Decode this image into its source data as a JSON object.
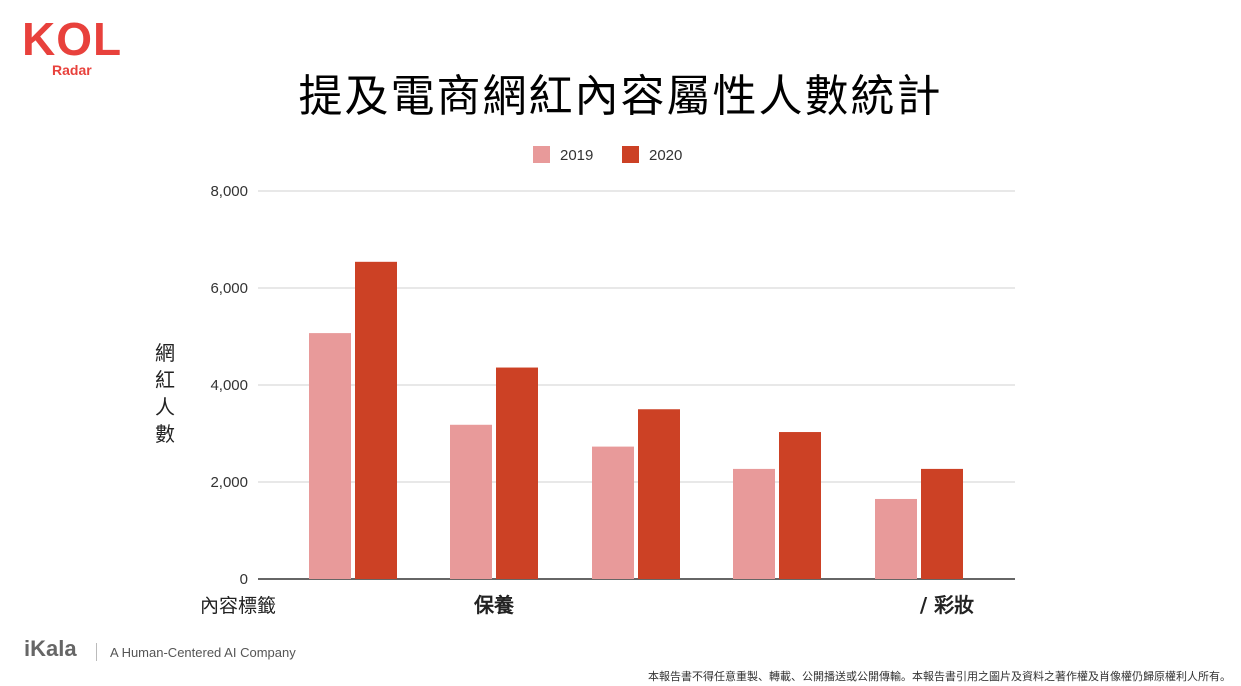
{
  "logo": {
    "text": "KOL",
    "subtext": "Radar",
    "color": "#e8413c"
  },
  "title": "提及電商網紅內容屬性人數統計",
  "footer": {
    "brand": "iKala",
    "tagline": "A Human-Centered AI Company",
    "note": "本報告書不得任意重製、轉載、公開播送或公開傳輸。本報告書引用之圖片及資料之著作權及肖像權仍歸原權利人所有。"
  },
  "chart_data": {
    "type": "bar",
    "title": "提及電商網紅內容屬性人數統計",
    "xlabel": "內容標籤",
    "ylabel": "網紅人數",
    "ylabel_chars": [
      "網",
      "紅",
      "人",
      "數"
    ],
    "ylim": [
      0,
      8000
    ],
    "yticks": [
      "0",
      "2,000",
      "4,000",
      "6,000",
      "8,000"
    ],
    "ytick_values": [
      0,
      2000,
      4000,
      6000,
      8000
    ],
    "grid": true,
    "legend_position": "top-center",
    "categories": [
      "",
      "保養",
      "",
      "",
      "/ 彩妝"
    ],
    "series": [
      {
        "name": "2019",
        "color": "#e89a9a",
        "values": [
          5070,
          3180,
          2730,
          2270,
          1650
        ]
      },
      {
        "name": "2020",
        "color": "#cc4125",
        "values": [
          6540,
          4360,
          3500,
          3030,
          2270
        ]
      }
    ]
  }
}
